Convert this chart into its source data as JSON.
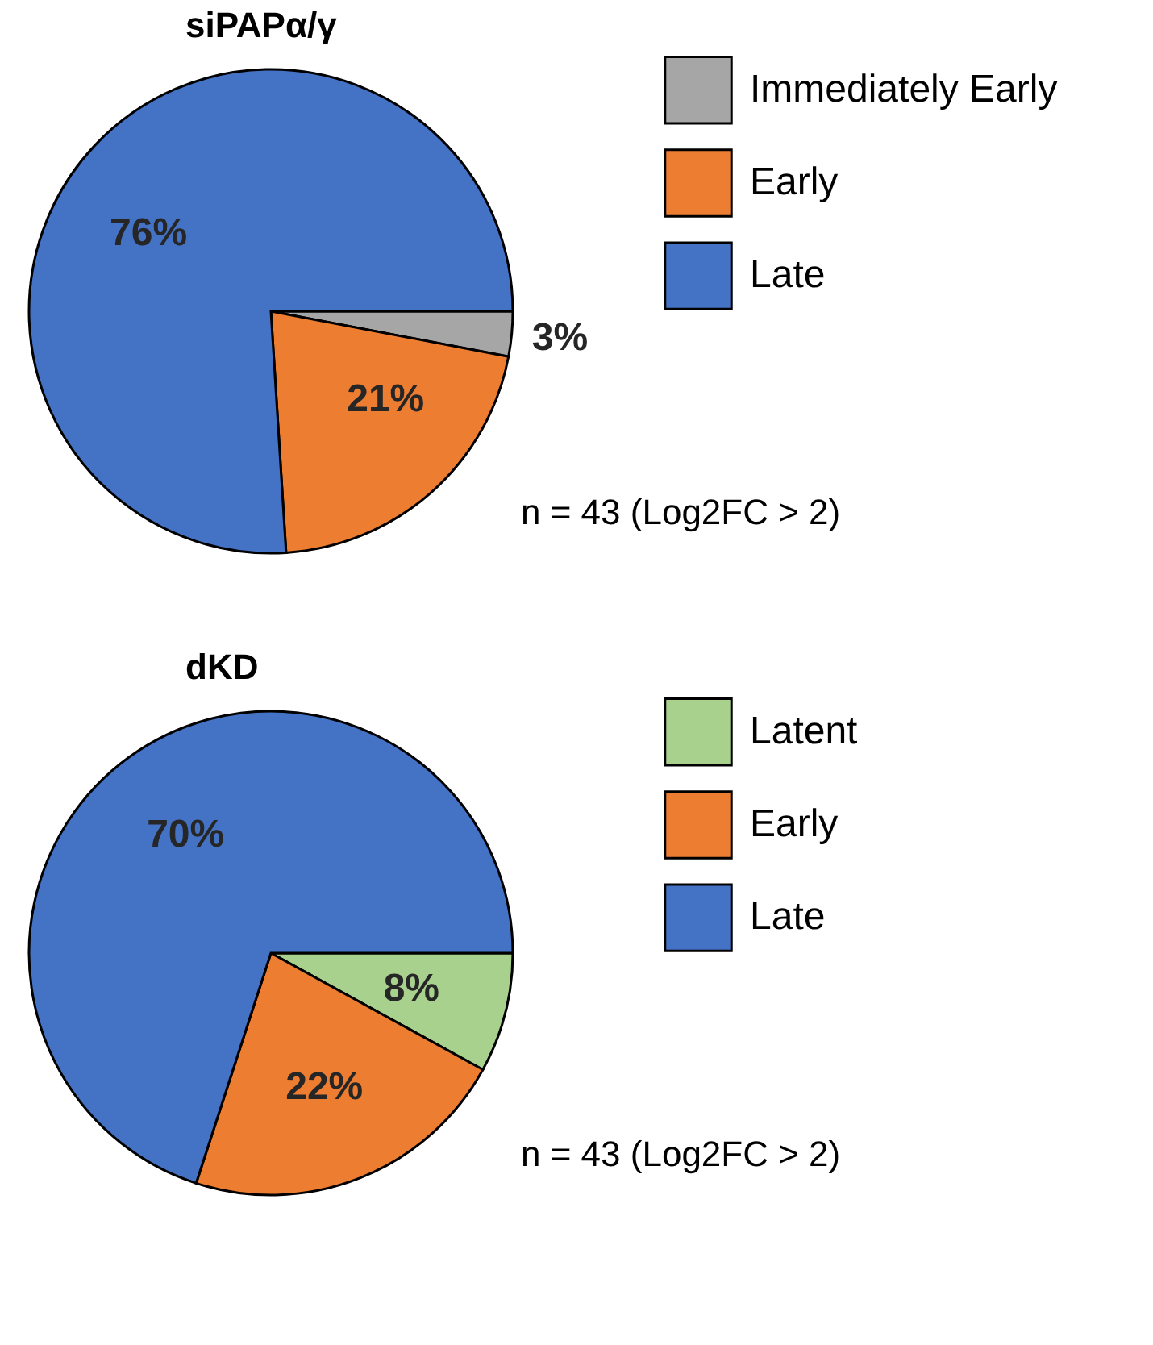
{
  "chart_data": [
    {
      "type": "pie",
      "title": "siPAPα/γ",
      "categories": [
        "Immediately Early",
        "Early",
        "Late"
      ],
      "values": [
        3,
        21,
        76
      ],
      "colors": [
        "#a6a6a6",
        "#ed7d31",
        "#4472c4"
      ],
      "value_labels": [
        "3%",
        "21%",
        "76%"
      ],
      "legend": "top right",
      "annotations": [
        "n = 43 (Log2FC > 2)"
      ]
    },
    {
      "type": "pie",
      "title": "dKD",
      "categories": [
        "Latent",
        "Early",
        "Late"
      ],
      "values": [
        8,
        22,
        70
      ],
      "colors": [
        "#a9d18e",
        "#ed7d31",
        "#4472c4"
      ],
      "value_labels": [
        "8%",
        "22%",
        "70%"
      ],
      "legend": "top right",
      "annotations": [
        "n = 43 (Log2FC > 2)"
      ]
    }
  ]
}
